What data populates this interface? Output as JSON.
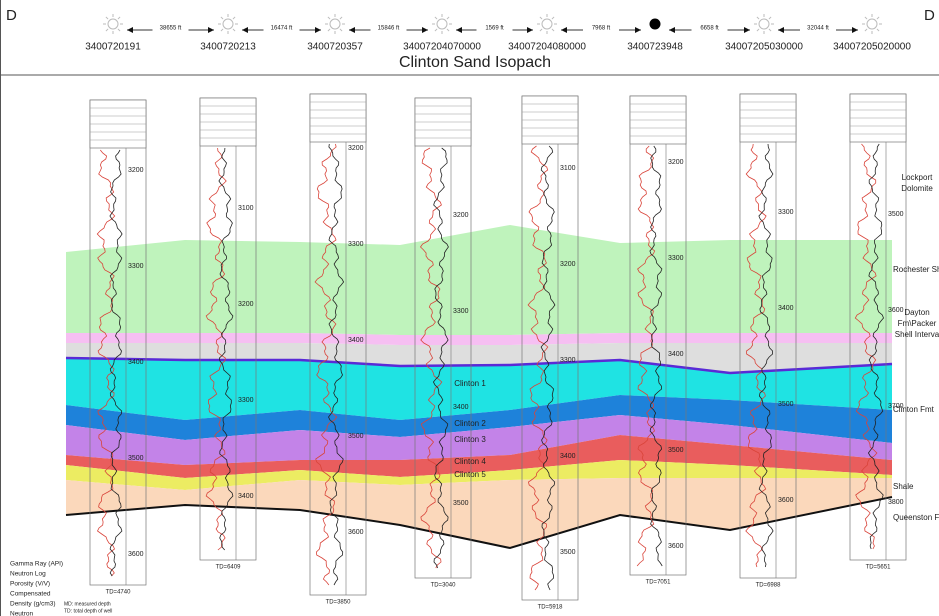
{
  "header": {
    "left": "D",
    "right": "D",
    "title": "Clinton Sand Isopach"
  },
  "wells": [
    {
      "name": "3400720191",
      "td": "TD=4740",
      "depths": [
        3200,
        3300,
        3400,
        3500,
        3600
      ]
    },
    {
      "name": "3400720213",
      "td": "TD=6409",
      "depths": [
        3100,
        3200,
        3300,
        3400
      ]
    },
    {
      "name": "3400720357",
      "td": "TD=3850",
      "depths": [
        3200,
        3300,
        3400,
        3500,
        3600
      ]
    },
    {
      "name": "34007204070000",
      "td": "TD=3040",
      "depths": [
        3200,
        3300,
        3400,
        3500
      ]
    },
    {
      "name": "34007204080000",
      "td": "TD=5918",
      "depths": [
        3100,
        3200,
        3300,
        3400,
        3500
      ]
    },
    {
      "name": "3400723948",
      "td": "TD=7051",
      "depths": [
        3200,
        3300,
        3400,
        3500,
        3600
      ]
    },
    {
      "name": "34007205030000",
      "td": "TD=6988",
      "depths": [
        3300,
        3400,
        3500,
        3600
      ]
    },
    {
      "name": "34007205020000",
      "td": "TD=5651",
      "depths": [
        3500,
        3600,
        3700,
        3800
      ]
    }
  ],
  "distances": [
    "38655 ft",
    "16474 ft",
    "15846 ft",
    "1569 ft",
    "7968 ft",
    "6658 ft",
    "32044 ft"
  ],
  "formations": [
    [
      "Lockport",
      "Dolomite"
    ],
    [
      "Rochester Sh"
    ],
    [
      "Dayton",
      "Fm\\Packer",
      "Shell Interva"
    ],
    [
      "Clinton Fmt"
    ],
    [
      "Shale"
    ],
    [
      "Queenston Fi"
    ]
  ],
  "layers": [
    "Clinton 1",
    "Clinton 2",
    "Clinton 3",
    "Clinton 4",
    "Clinton 5"
  ],
  "legend": [
    "Gamma Ray (API)",
    "Neutron Log",
    "Porosity (V/V)",
    "Compensated",
    "Density (g/cm3)",
    "Neutron"
  ],
  "notes": [
    "MD: measured depth",
    "TD: total depth of well"
  ]
}
